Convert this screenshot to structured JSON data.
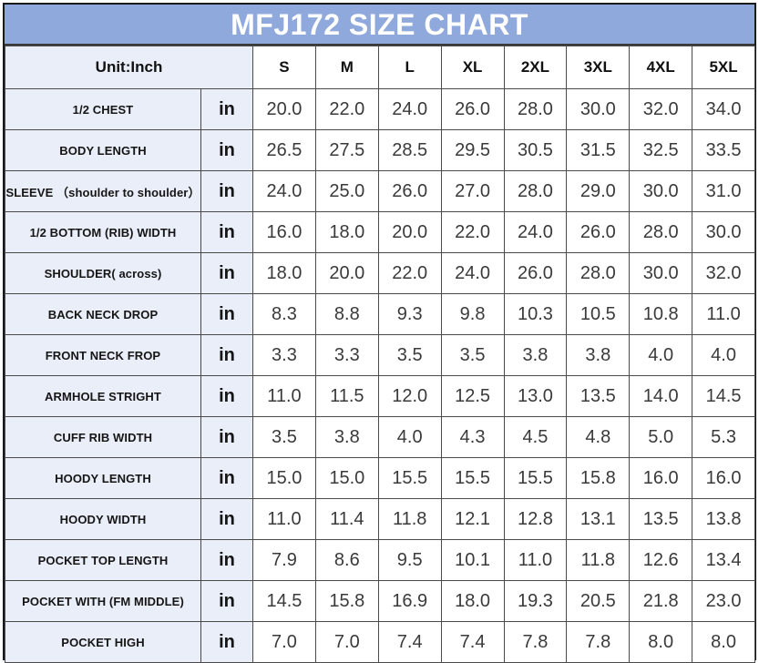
{
  "title": "MFJ172 SIZE CHART",
  "header": {
    "unit_label": "Unit:Inch",
    "sizes": [
      "S",
      "M",
      "L",
      "XL",
      "2XL",
      "3XL",
      "4XL",
      "5XL"
    ]
  },
  "rows": [
    {
      "label": "1/2 CHEST",
      "unit": "in",
      "values": [
        "20.0",
        "22.0",
        "24.0",
        "26.0",
        "28.0",
        "30.0",
        "32.0",
        "34.0"
      ]
    },
    {
      "label": "BODY LENGTH",
      "unit": "in",
      "values": [
        "26.5",
        "27.5",
        "28.5",
        "29.5",
        "30.5",
        "31.5",
        "32.5",
        "33.5"
      ]
    },
    {
      "label": "SLEEVE （shoulder to shoulder）",
      "unit": "in",
      "values": [
        "24.0",
        "25.0",
        "26.0",
        "27.0",
        "28.0",
        "29.0",
        "30.0",
        "31.0"
      ]
    },
    {
      "label": "1/2 BOTTOM (RIB) WIDTH",
      "unit": "in",
      "values": [
        "16.0",
        "18.0",
        "20.0",
        "22.0",
        "24.0",
        "26.0",
        "28.0",
        "30.0"
      ]
    },
    {
      "label": "SHOULDER( across)",
      "unit": "in",
      "values": [
        "18.0",
        "20.0",
        "22.0",
        "24.0",
        "26.0",
        "28.0",
        "30.0",
        "32.0"
      ]
    },
    {
      "label": "BACK NECK DROP",
      "unit": "in",
      "values": [
        "8.3",
        "8.8",
        "9.3",
        "9.8",
        "10.3",
        "10.5",
        "10.8",
        "11.0"
      ]
    },
    {
      "label": "FRONT NECK FROP",
      "unit": "in",
      "values": [
        "3.3",
        "3.3",
        "3.5",
        "3.5",
        "3.8",
        "3.8",
        "4.0",
        "4.0"
      ]
    },
    {
      "label": "ARMHOLE STRIGHT",
      "unit": "in",
      "values": [
        "11.0",
        "11.5",
        "12.0",
        "12.5",
        "13.0",
        "13.5",
        "14.0",
        "14.5"
      ]
    },
    {
      "label": "CUFF RIB WIDTH",
      "unit": "in",
      "values": [
        "3.5",
        "3.8",
        "4.0",
        "4.3",
        "4.5",
        "4.8",
        "5.0",
        "5.3"
      ]
    },
    {
      "label": "HOODY LENGTH",
      "unit": "in",
      "values": [
        "15.0",
        "15.0",
        "15.5",
        "15.5",
        "15.5",
        "15.8",
        "16.0",
        "16.0"
      ]
    },
    {
      "label": "HOODY WIDTH",
      "unit": "in",
      "values": [
        "11.0",
        "11.4",
        "11.8",
        "12.1",
        "12.8",
        "13.1",
        "13.5",
        "13.8"
      ]
    },
    {
      "label": "POCKET TOP LENGTH",
      "unit": "in",
      "values": [
        "7.9",
        "8.6",
        "9.5",
        "10.1",
        "11.0",
        "11.8",
        "12.6",
        "13.4"
      ]
    },
    {
      "label": "POCKET WITH (FM MIDDLE)",
      "unit": "in",
      "values": [
        "14.5",
        "15.8",
        "16.9",
        "18.0",
        "19.3",
        "20.5",
        "21.8",
        "23.0"
      ]
    },
    {
      "label": "POCKET HIGH",
      "unit": "in",
      "values": [
        "7.0",
        "7.0",
        "7.4",
        "7.4",
        "7.8",
        "7.8",
        "8.0",
        "8.0"
      ]
    }
  ],
  "colors": {
    "title_bg": "#8fa9dc",
    "title_text": "#ffffff",
    "label_bg": "#e9eef8",
    "border": "#4a4a4a"
  }
}
